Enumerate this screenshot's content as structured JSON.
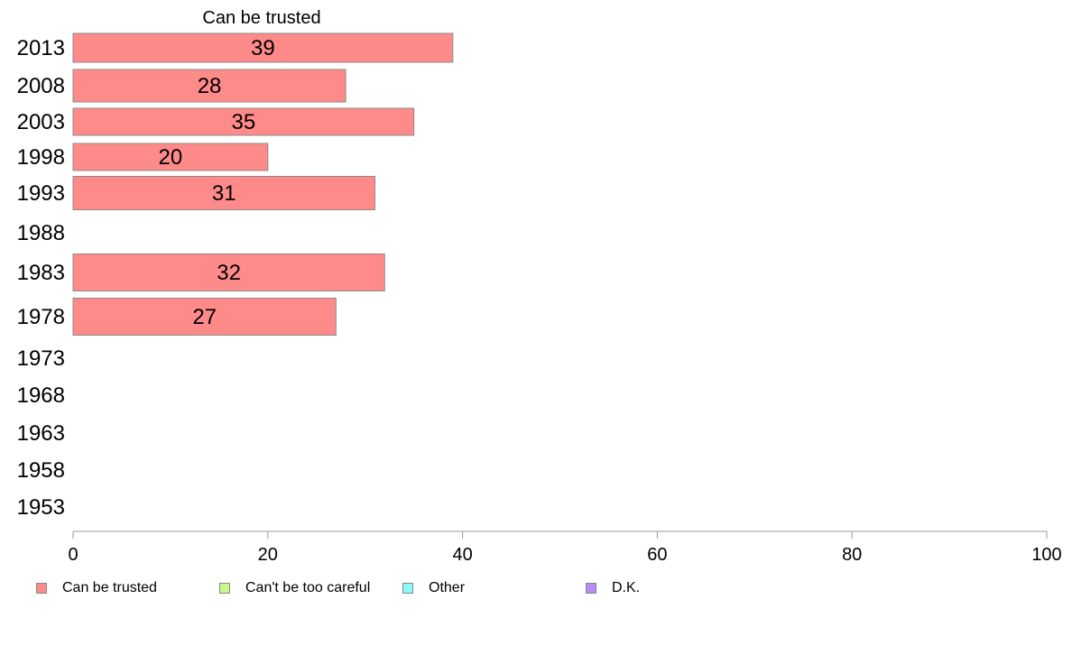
{
  "chart_data": {
    "type": "bar",
    "orientation": "horizontal",
    "stacked": true,
    "title": "Can be trusted",
    "categories": [
      "2013",
      "2008",
      "2003",
      "1998",
      "1993",
      "1988",
      "1983",
      "1978",
      "1973",
      "1968",
      "1963",
      "1958",
      "1953"
    ],
    "series": [
      {
        "name": "Can be trusted",
        "color": "#ff8a8a",
        "values": [
          39,
          28,
          35,
          20,
          31,
          null,
          32,
          27,
          null,
          null,
          null,
          null,
          null
        ]
      },
      {
        "name": "Can't be too careful",
        "color": "#c8f88a",
        "values": [
          null,
          null,
          null,
          null,
          null,
          null,
          null,
          null,
          null,
          null,
          null,
          null,
          null
        ]
      },
      {
        "name": "Other",
        "color": "#8afafa",
        "values": [
          null,
          null,
          null,
          null,
          null,
          null,
          null,
          null,
          null,
          null,
          null,
          null,
          null
        ]
      },
      {
        "name": "D.K.",
        "color": "#b98af8",
        "values": [
          null,
          null,
          null,
          null,
          null,
          null,
          null,
          null,
          null,
          null,
          null,
          null,
          null
        ]
      }
    ],
    "xlim": [
      0,
      100
    ],
    "xticks": [
      "0",
      "20",
      "40",
      "60",
      "80",
      "100"
    ],
    "grid": false,
    "legend_position": "bottom"
  }
}
